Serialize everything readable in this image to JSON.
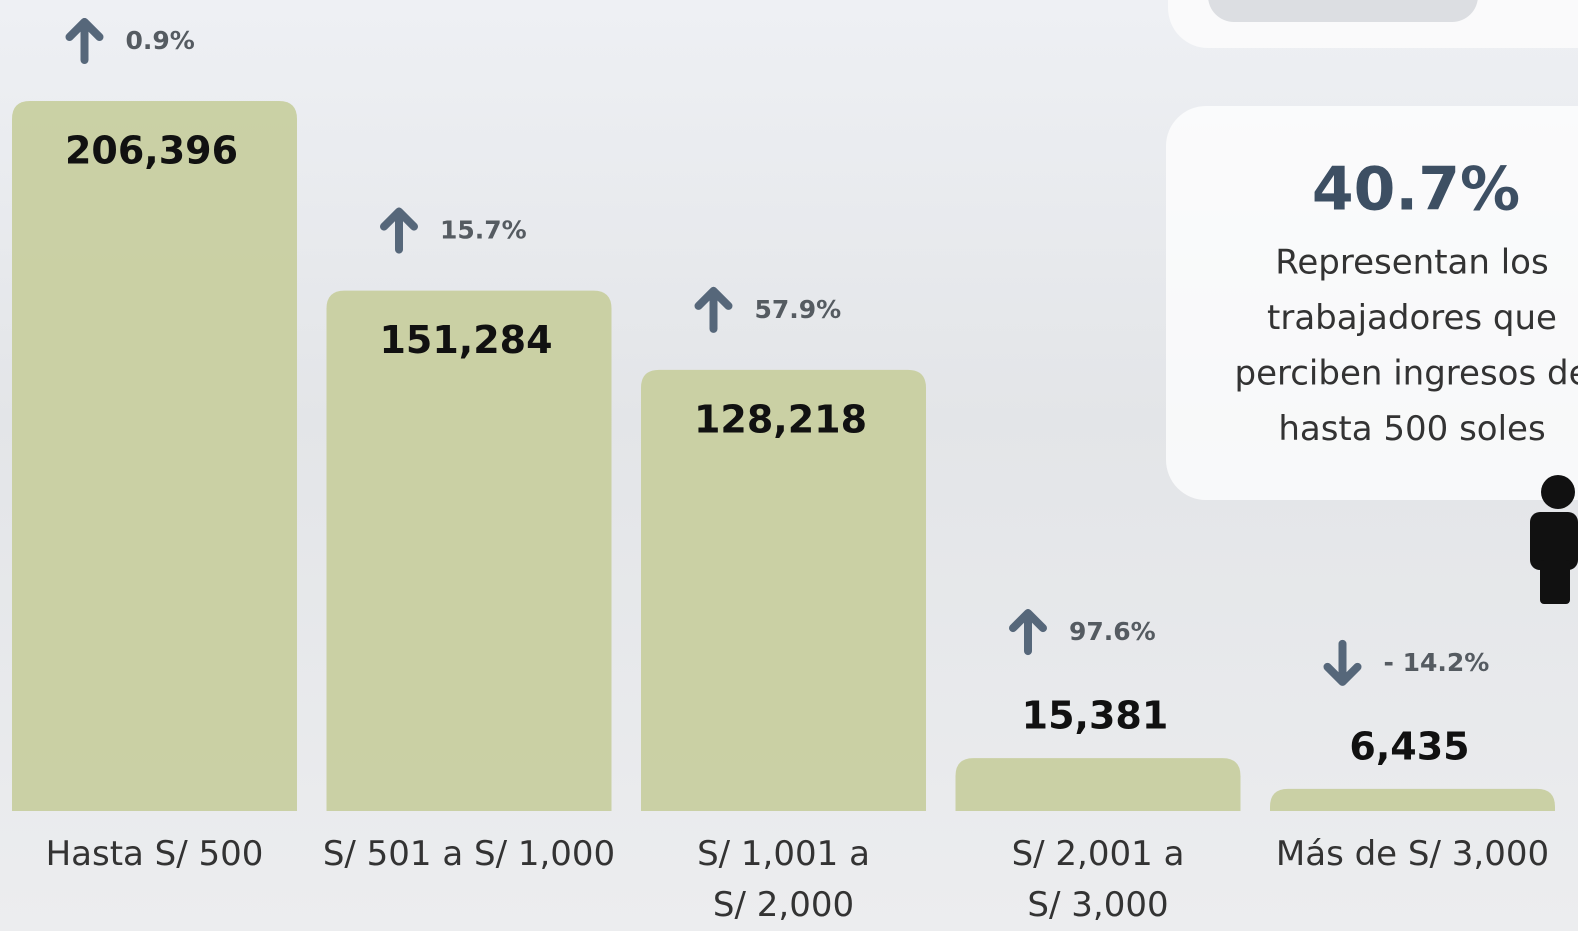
{
  "chart_data": {
    "type": "bar",
    "categories": [
      "Hasta S/ 500",
      "S/ 501 a S/ 1,000",
      "S/ 1,001 a\nS/ 2,000",
      "S/ 2,001 a\nS/ 3,000",
      "Más de S/ 3,000"
    ],
    "values": [
      206396,
      151284,
      128218,
      15381,
      6435
    ],
    "value_labels": [
      "206,396",
      "151,284",
      "128,218",
      "15,381",
      "6,435"
    ],
    "changes": [
      0.9,
      15.7,
      57.9,
      97.6,
      -14.2
    ],
    "change_labels": [
      "0.9%",
      "15.7%",
      "57.9%",
      "97.6%",
      "- 14.2%"
    ],
    "color": "#c6cd9c",
    "callout": {
      "value": "40.7%",
      "lines": [
        "Representan los",
        "trabajadores que",
        "perciben ingresos de",
        "hasta 500 soles"
      ]
    }
  }
}
